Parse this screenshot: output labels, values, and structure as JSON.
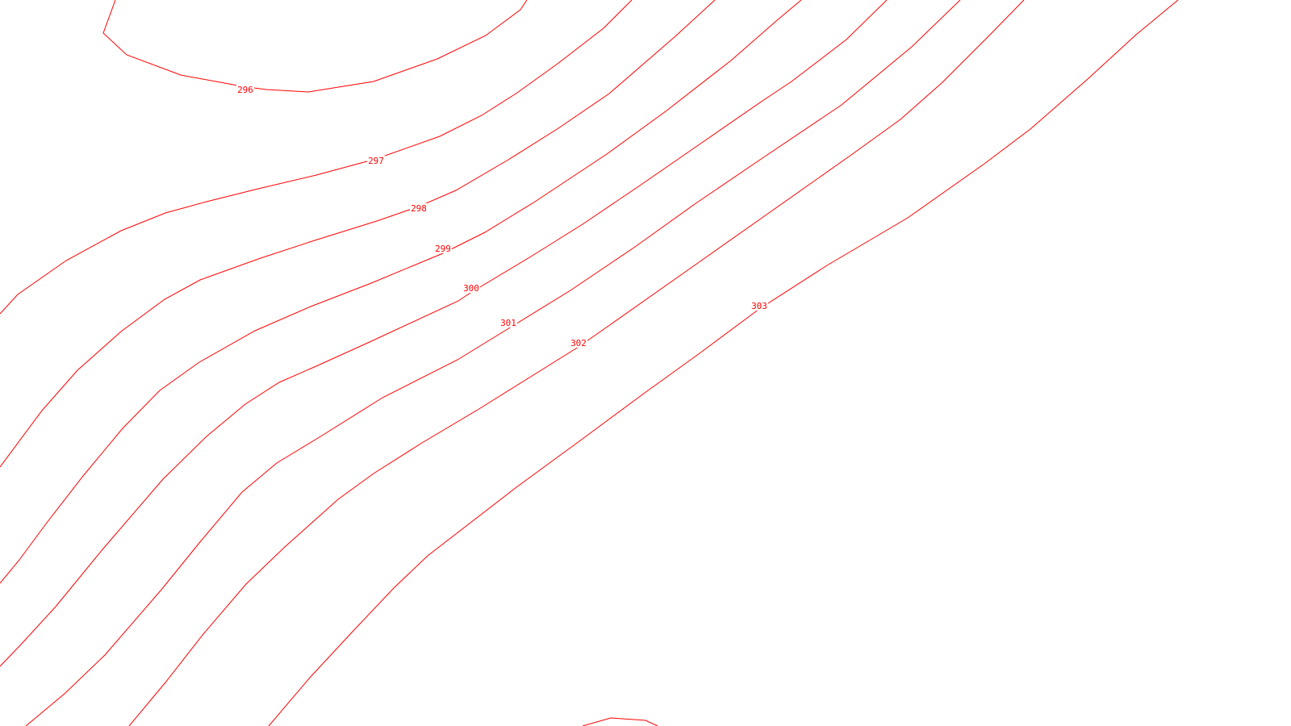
{
  "map": {
    "type": "contour-map",
    "line_color": "#ff0000",
    "background_color": "#ffffff",
    "contours": [
      {
        "value": 296,
        "label": "296"
      },
      {
        "value": 297,
        "label": "297"
      },
      {
        "value": 298,
        "label": "298"
      },
      {
        "value": 299,
        "label": "299"
      },
      {
        "value": 300,
        "label": "300"
      },
      {
        "value": 301,
        "label": "301"
      },
      {
        "value": 302,
        "label": "302"
      },
      {
        "value": 303,
        "label": "303"
      }
    ],
    "unlabeled_contours": 1
  }
}
